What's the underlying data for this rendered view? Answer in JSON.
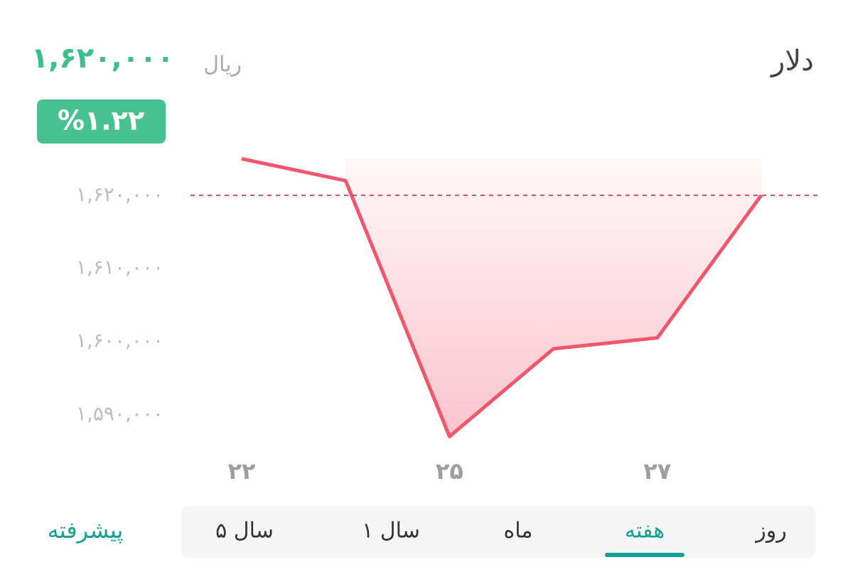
{
  "header": {
    "title": "دلار",
    "price": "۱,۶۲۰,۰۰۰",
    "unit": "ریال",
    "change": "%۱.۲۲"
  },
  "chart_data": {
    "type": "line",
    "categories": [
      "۲۲",
      null,
      "۲۵",
      null,
      "۲۷",
      null
    ],
    "series": [
      {
        "name": "دلار",
        "color": "#f0566c",
        "values": [
          1625000,
          1622000,
          1587000,
          1599000,
          1600500,
          1620000
        ]
      }
    ],
    "ylim": [
      1584500,
      1626500
    ],
    "yticks": [
      {
        "value": 1590000,
        "label": "۱,۵۹۰,۰۰۰"
      },
      {
        "value": 1600000,
        "label": "۱,۶۰۰,۰۰۰"
      },
      {
        "value": 1610000,
        "label": "۱,۶۱۰,۰۰۰"
      },
      {
        "value": 1620000,
        "label": "۱,۶۲۰,۰۰۰"
      }
    ],
    "reference_line": 1620000,
    "reference_color": "#e0455c"
  },
  "tabs": {
    "items": [
      "روز",
      "هفته",
      "ماه",
      "۱ سال",
      "۵ سال"
    ],
    "selected": 1,
    "advanced": "پیشرفته"
  }
}
